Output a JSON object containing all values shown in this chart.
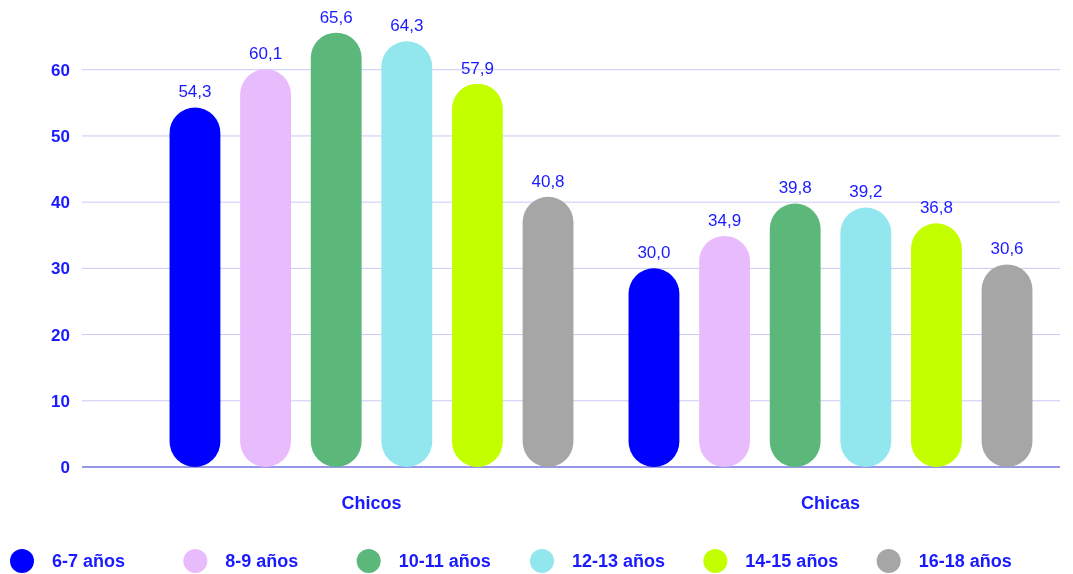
{
  "chart_data": {
    "type": "bar",
    "categories": [
      "Chicos",
      "Chicas"
    ],
    "series": [
      {
        "name": "6-7 años",
        "color": "#0000ff",
        "values": [
          54.3,
          30.0
        ],
        "value_labels": [
          "54,3",
          "30,0"
        ]
      },
      {
        "name": "8-9 años",
        "color": "#e8bcfc",
        "values": [
          60.1,
          34.9
        ],
        "value_labels": [
          "60,1",
          "34,9"
        ]
      },
      {
        "name": "10-11 años",
        "color": "#5cb87a",
        "values": [
          65.6,
          39.8
        ],
        "value_labels": [
          "65,6",
          "39,8"
        ]
      },
      {
        "name": "12-13 años",
        "color": "#92e6ee",
        "values": [
          64.3,
          39.2
        ],
        "value_labels": [
          "64,3",
          "39,2"
        ]
      },
      {
        "name": "14-15 años",
        "color": "#c4ff00",
        "values": [
          57.9,
          36.8
        ],
        "value_labels": [
          "57,9",
          "36,8"
        ]
      },
      {
        "name": "16-18 años",
        "color": "#a6a6a6",
        "values": [
          40.8,
          30.6
        ],
        "value_labels": [
          "40,8",
          "30,6"
        ]
      }
    ],
    "ylim": [
      0,
      66
    ],
    "yticks": [
      0,
      10,
      20,
      30,
      40,
      50,
      60
    ],
    "grid": "y",
    "legend": "bottom"
  }
}
